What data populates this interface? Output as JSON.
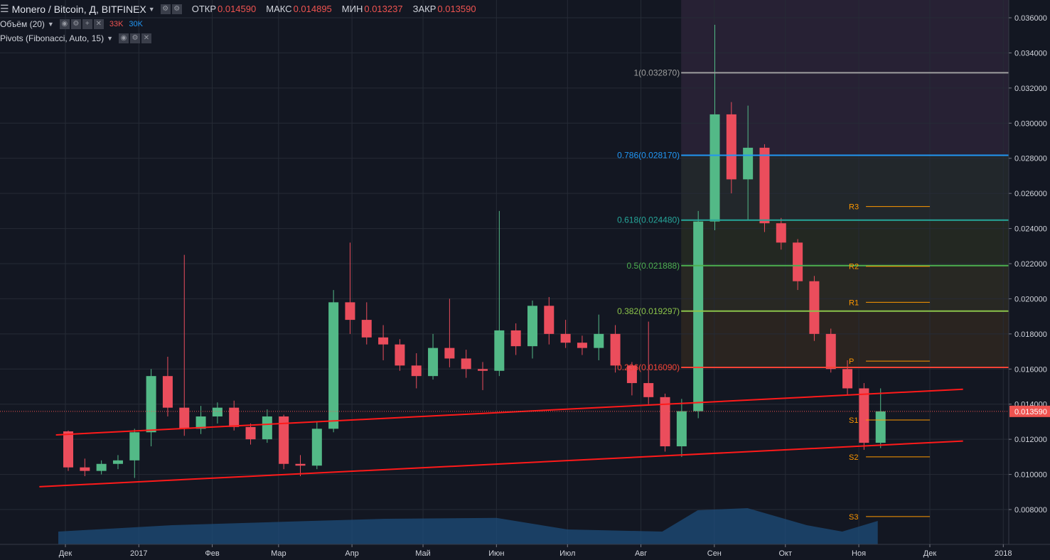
{
  "header": {
    "symbol_title": "Monero / Bitcoin, Д, BITFINEX",
    "ohlc": [
      {
        "key": "ОТКР",
        "value": "0.014590"
      },
      {
        "key": "МАКС",
        "value": "0.014895"
      },
      {
        "key": "МИН",
        "value": "0.013237"
      },
      {
        "key": "ЗАКР",
        "value": "0.013590"
      }
    ]
  },
  "indicators": {
    "volume": {
      "label": "Объём (20)",
      "v1": "33K",
      "v2": "30K",
      "v1_color": "#ef5350",
      "v2_color": "#2196f3"
    },
    "pivots": {
      "label": "Pivots (Fibonacci, Auto, 15)"
    }
  },
  "chart_data": {
    "type": "candlestick",
    "ylim": [
      0.0062,
      0.0368
    ],
    "y_ticks": [
      "0.008000",
      "0.010000",
      "0.012000",
      "0.014000",
      "0.016000",
      "0.018000",
      "0.020000",
      "0.022000",
      "0.024000",
      "0.026000",
      "0.028000",
      "0.030000",
      "0.032000",
      "0.034000",
      "0.036000"
    ],
    "y_tick_values": [
      0.008,
      0.01,
      0.012,
      0.014,
      0.016,
      0.018,
      0.02,
      0.022,
      0.024,
      0.026,
      0.028,
      0.03,
      0.032,
      0.034,
      0.036
    ],
    "x_ticks": [
      "Дек",
      "2017",
      "Фев",
      "Мар",
      "Апр",
      "Май",
      "Июн",
      "Июл",
      "Авг",
      "Сен",
      "Окт",
      "Ноя",
      "Дек",
      "2018"
    ],
    "x_tick_dates": [
      "2016-12-01",
      "2017-01-01",
      "2017-02-01",
      "2017-03-01",
      "2017-04-01",
      "2017-05-01",
      "2017-06-01",
      "2017-07-01",
      "2017-08-01",
      "2017-09-01",
      "2017-10-01",
      "2017-11-01",
      "2017-12-01",
      "2018-01-01"
    ],
    "last_price": {
      "label": "0.013590",
      "value": 0.01359,
      "color": "#ef5350"
    },
    "fib_levels": [
      {
        "label": "1(0.032870)",
        "value": 0.03287,
        "color": "#9e9e9e"
      },
      {
        "label": "0.786(0.028170)",
        "value": 0.02817,
        "color": "#2196f3"
      },
      {
        "label": "0.618(0.024480)",
        "value": 0.02448,
        "color": "#26a69a"
      },
      {
        "label": "0.5(0.021888)",
        "value": 0.021888,
        "color": "#4caf50"
      },
      {
        "label": "0.382(0.019297)",
        "value": 0.019297,
        "color": "#8bc34a"
      },
      {
        "label": "0.236(0.016090)",
        "value": 0.01609,
        "color": "#f44336"
      }
    ],
    "pivot_levels": [
      {
        "label": "R3",
        "value": 0.02525
      },
      {
        "label": "R2",
        "value": 0.02185
      },
      {
        "label": "R1",
        "value": 0.0198
      },
      {
        "label": "P",
        "value": 0.01645
      },
      {
        "label": "S1",
        "value": 0.0131
      },
      {
        "label": "S2",
        "value": 0.011
      },
      {
        "label": "S3",
        "value": 0.0076
      }
    ],
    "trendlines": [
      {
        "start": [
          "2016-11-27",
          0.01225
        ],
        "end": [
          "2017-12-15",
          0.01485
        ]
      },
      {
        "start": [
          "2016-11-20",
          0.0093
        ],
        "end": [
          "2017-12-15",
          0.0119
        ]
      }
    ],
    "series": [
      {
        "date": "2016-11-28",
        "open": 0.01245,
        "high": 0.0125,
        "low": 0.0102,
        "close": 0.0104
      },
      {
        "date": "2016-12-05",
        "open": 0.0104,
        "high": 0.0109,
        "low": 0.0099,
        "close": 0.0102
      },
      {
        "date": "2016-12-12",
        "open": 0.0102,
        "high": 0.0108,
        "low": 0.01,
        "close": 0.0106
      },
      {
        "date": "2016-12-19",
        "open": 0.0106,
        "high": 0.0111,
        "low": 0.0103,
        "close": 0.0108
      },
      {
        "date": "2016-12-26",
        "open": 0.0108,
        "high": 0.0126,
        "low": 0.0098,
        "close": 0.0124
      },
      {
        "date": "2017-01-02",
        "open": 0.0124,
        "high": 0.016,
        "low": 0.0116,
        "close": 0.0156
      },
      {
        "date": "2017-01-09",
        "open": 0.0156,
        "high": 0.0167,
        "low": 0.0133,
        "close": 0.0138
      },
      {
        "date": "2017-01-16",
        "open": 0.0138,
        "high": 0.0225,
        "low": 0.0122,
        "close": 0.0126
      },
      {
        "date": "2017-01-23",
        "open": 0.0126,
        "high": 0.0139,
        "low": 0.0123,
        "close": 0.0133
      },
      {
        "date": "2017-01-30",
        "open": 0.0133,
        "high": 0.0141,
        "low": 0.0129,
        "close": 0.0138
      },
      {
        "date": "2017-02-06",
        "open": 0.0138,
        "high": 0.0142,
        "low": 0.0125,
        "close": 0.0127
      },
      {
        "date": "2017-02-13",
        "open": 0.0127,
        "high": 0.0129,
        "low": 0.0117,
        "close": 0.012
      },
      {
        "date": "2017-02-20",
        "open": 0.012,
        "high": 0.0137,
        "low": 0.0118,
        "close": 0.0133
      },
      {
        "date": "2017-02-27",
        "open": 0.0133,
        "high": 0.0134,
        "low": 0.0103,
        "close": 0.0106
      },
      {
        "date": "2017-03-06",
        "open": 0.0106,
        "high": 0.0111,
        "low": 0.0099,
        "close": 0.0105
      },
      {
        "date": "2017-03-13",
        "open": 0.0105,
        "high": 0.013,
        "low": 0.0103,
        "close": 0.0126
      },
      {
        "date": "2017-03-20",
        "open": 0.0126,
        "high": 0.0205,
        "low": 0.0124,
        "close": 0.0198
      },
      {
        "date": "2017-03-27",
        "open": 0.0198,
        "high": 0.0232,
        "low": 0.018,
        "close": 0.0188
      },
      {
        "date": "2017-04-03",
        "open": 0.0188,
        "high": 0.0198,
        "low": 0.0174,
        "close": 0.0178
      },
      {
        "date": "2017-04-10",
        "open": 0.0178,
        "high": 0.0185,
        "low": 0.0165,
        "close": 0.0174
      },
      {
        "date": "2017-04-17",
        "open": 0.0174,
        "high": 0.0177,
        "low": 0.0159,
        "close": 0.0162
      },
      {
        "date": "2017-04-24",
        "open": 0.0162,
        "high": 0.0169,
        "low": 0.0149,
        "close": 0.0156
      },
      {
        "date": "2017-05-01",
        "open": 0.0156,
        "high": 0.018,
        "low": 0.0154,
        "close": 0.0172
      },
      {
        "date": "2017-05-08",
        "open": 0.0172,
        "high": 0.02,
        "low": 0.0161,
        "close": 0.0166
      },
      {
        "date": "2017-05-15",
        "open": 0.0166,
        "high": 0.0171,
        "low": 0.0155,
        "close": 0.016
      },
      {
        "date": "2017-05-22",
        "open": 0.016,
        "high": 0.0164,
        "low": 0.0148,
        "close": 0.0159
      },
      {
        "date": "2017-05-29",
        "open": 0.0159,
        "high": 0.025,
        "low": 0.0156,
        "close": 0.0182
      },
      {
        "date": "2017-06-05",
        "open": 0.0182,
        "high": 0.0186,
        "low": 0.0168,
        "close": 0.0173
      },
      {
        "date": "2017-06-12",
        "open": 0.0173,
        "high": 0.0199,
        "low": 0.0166,
        "close": 0.0196
      },
      {
        "date": "2017-06-19",
        "open": 0.0196,
        "high": 0.0201,
        "low": 0.0174,
        "close": 0.018
      },
      {
        "date": "2017-06-26",
        "open": 0.018,
        "high": 0.0188,
        "low": 0.0172,
        "close": 0.0175
      },
      {
        "date": "2017-07-03",
        "open": 0.0175,
        "high": 0.0179,
        "low": 0.0168,
        "close": 0.0172
      },
      {
        "date": "2017-07-10",
        "open": 0.0172,
        "high": 0.0191,
        "low": 0.0165,
        "close": 0.018
      },
      {
        "date": "2017-07-17",
        "open": 0.018,
        "high": 0.0185,
        "low": 0.0158,
        "close": 0.0162
      },
      {
        "date": "2017-07-24",
        "open": 0.0162,
        "high": 0.0164,
        "low": 0.0145,
        "close": 0.0152
      },
      {
        "date": "2017-07-31",
        "open": 0.0152,
        "high": 0.0187,
        "low": 0.014,
        "close": 0.0144
      },
      {
        "date": "2017-08-07",
        "open": 0.0144,
        "high": 0.0146,
        "low": 0.0113,
        "close": 0.0116
      },
      {
        "date": "2017-08-14",
        "open": 0.0116,
        "high": 0.0143,
        "low": 0.011,
        "close": 0.0136
      },
      {
        "date": "2017-08-21",
        "open": 0.0136,
        "high": 0.025,
        "low": 0.0132,
        "close": 0.0244
      },
      {
        "date": "2017-08-28",
        "open": 0.0244,
        "high": 0.0356,
        "low": 0.0239,
        "close": 0.0305
      },
      {
        "date": "2017-09-04",
        "open": 0.0305,
        "high": 0.0312,
        "low": 0.026,
        "close": 0.0268
      },
      {
        "date": "2017-09-11",
        "open": 0.0268,
        "high": 0.031,
        "low": 0.0245,
        "close": 0.0286
      },
      {
        "date": "2017-09-18",
        "open": 0.0286,
        "high": 0.0288,
        "low": 0.0238,
        "close": 0.0243
      },
      {
        "date": "2017-09-25",
        "open": 0.0243,
        "high": 0.0246,
        "low": 0.0228,
        "close": 0.0232
      },
      {
        "date": "2017-10-02",
        "open": 0.0232,
        "high": 0.0234,
        "low": 0.0205,
        "close": 0.021
      },
      {
        "date": "2017-10-09",
        "open": 0.021,
        "high": 0.0213,
        "low": 0.0176,
        "close": 0.018
      },
      {
        "date": "2017-10-16",
        "open": 0.018,
        "high": 0.0183,
        "low": 0.0158,
        "close": 0.016
      },
      {
        "date": "2017-10-23",
        "open": 0.016,
        "high": 0.0165,
        "low": 0.0145,
        "close": 0.0149
      },
      {
        "date": "2017-10-30",
        "open": 0.0149,
        "high": 0.0152,
        "low": 0.0114,
        "close": 0.0118
      },
      {
        "date": "2017-11-06",
        "open": 0.0118,
        "high": 0.0149,
        "low": 0.0115,
        "close": 0.01359
      }
    ]
  }
}
